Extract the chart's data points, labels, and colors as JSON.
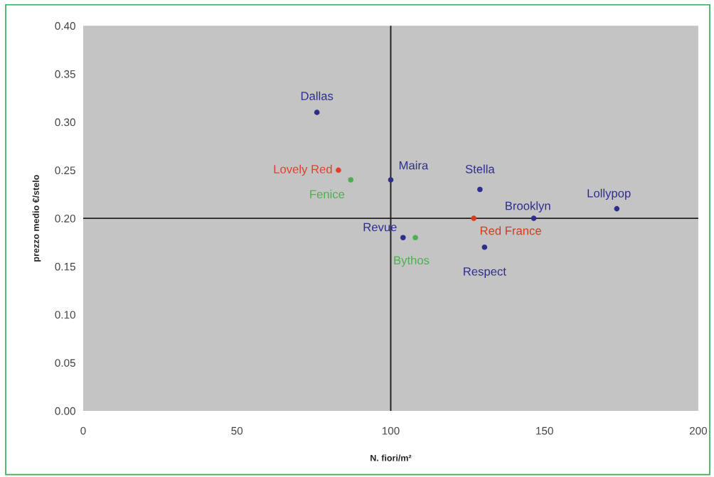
{
  "chart_data": {
    "type": "scatter",
    "xlabel": "N. fiori/m²",
    "ylabel": "prezzo medio €/stelo",
    "x": [
      76,
      83,
      87,
      100,
      129,
      127,
      104,
      108,
      130.5,
      146.5,
      173.5
    ],
    "values": [
      0.31,
      0.25,
      0.24,
      0.24,
      0.23,
      0.2,
      0.18,
      0.18,
      0.17,
      0.2,
      0.21
    ],
    "colors": [
      "#2e2e8c",
      "#e0402a",
      "#4caf50",
      "#2e2e8c",
      "#2e2e8c",
      "#d83a20",
      "#2e2e8c",
      "#4caf50",
      "#2e2e8c",
      "#2e2e8c",
      "#2e2e8c"
    ],
    "marker": "circle",
    "xlim": [
      0,
      200
    ],
    "xticks": [
      0,
      50,
      100,
      150,
      200
    ],
    "ylim": [
      0,
      0.4
    ],
    "yticks": [
      {
        "value": 0,
        "label": "0.00"
      },
      {
        "value": 0.05,
        "label": "0.05"
      },
      {
        "value": 0.1,
        "label": "0.10"
      },
      {
        "value": 0.15,
        "label": "0.15"
      },
      {
        "value": 0.2,
        "label": "0.20"
      },
      {
        "value": 0.25,
        "label": "0.25"
      },
      {
        "value": 0.3,
        "label": "0.30"
      },
      {
        "value": 0.35,
        "label": "0.35"
      },
      {
        "value": 0.4,
        "label": "0.40"
      }
    ],
    "grid": false,
    "legend": false,
    "ref_lines": [
      {
        "axis": "x",
        "value": 100,
        "color": "#202020"
      },
      {
        "axis": "y",
        "value": 0.2,
        "color": "#202020"
      }
    ],
    "annotations": [
      {
        "text": "Dallas",
        "x": 76,
        "y": 0.31
      },
      {
        "text": "Lovely Red",
        "x": 83,
        "y": 0.25
      },
      {
        "text": "Fenice",
        "x": 87,
        "y": 0.24
      },
      {
        "text": "Maira",
        "x": 100,
        "y": 0.24
      },
      {
        "text": "Stella",
        "x": 129,
        "y": 0.23
      },
      {
        "text": "Red France",
        "x": 127,
        "y": 0.2
      },
      {
        "text": "Revue",
        "x": 104,
        "y": 0.18
      },
      {
        "text": "Bythos",
        "x": 108,
        "y": 0.18
      },
      {
        "text": "Respect",
        "x": 130.5,
        "y": 0.17
      },
      {
        "text": "Brooklyn",
        "x": 146.5,
        "y": 0.2
      },
      {
        "text": "Lollypop",
        "x": 173.5,
        "y": 0.21
      }
    ]
  }
}
